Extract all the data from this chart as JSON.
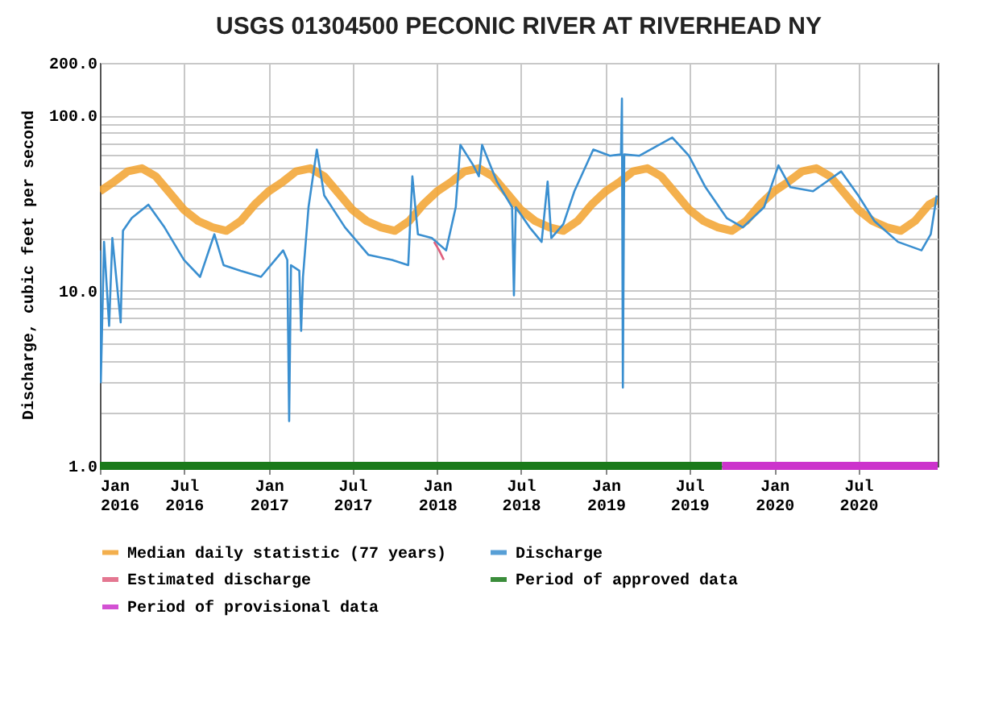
{
  "chart_data": {
    "type": "line",
    "title": "USGS 01304500 PECONIC RIVER AT RIVERHEAD NY",
    "ylabel": "Discharge, cubic feet per second",
    "log": true,
    "grid": true,
    "legend": "bottom",
    "xlim": [
      "2016-01-01",
      "2020-12-20"
    ],
    "xticks": [
      {
        "value": "2016-01-01",
        "label": "Jan 2016"
      },
      {
        "value": "2016-07-01",
        "label": "Jul 2016"
      },
      {
        "value": "2017-01-01",
        "label": "Jan 2017"
      },
      {
        "value": "2017-07-01",
        "label": "Jul 2017"
      },
      {
        "value": "2018-01-01",
        "label": "Jan 2018"
      },
      {
        "value": "2018-07-01",
        "label": "Jul 2018"
      },
      {
        "value": "2019-01-01",
        "label": "Jan 2019"
      },
      {
        "value": "2019-07-01",
        "label": "Jul 2019"
      },
      {
        "value": "2020-01-01",
        "label": "Jan 2020"
      },
      {
        "value": "2020-07-01",
        "label": "Jul 2020"
      }
    ],
    "ylim": [
      1,
      200
    ],
    "yticks": [
      {
        "value": 1,
        "label": "1.0"
      },
      {
        "value": 2,
        "label": null
      },
      {
        "value": 3,
        "label": null
      },
      {
        "value": 4,
        "label": null
      },
      {
        "value": 5,
        "label": null
      },
      {
        "value": 6,
        "label": null
      },
      {
        "value": 7,
        "label": null
      },
      {
        "value": 8,
        "label": null
      },
      {
        "value": 9,
        "label": null
      },
      {
        "value": 10,
        "label": "10.0"
      },
      {
        "value": 20,
        "label": null
      },
      {
        "value": 30,
        "label": null
      },
      {
        "value": 40,
        "label": null
      },
      {
        "value": 50,
        "label": null
      },
      {
        "value": 60,
        "label": null
      },
      {
        "value": 70,
        "label": null
      },
      {
        "value": 80,
        "label": null
      },
      {
        "value": 90,
        "label": null
      },
      {
        "value": 100,
        "label": "100.0"
      },
      {
        "value": 200,
        "label": "200.0"
      }
    ],
    "series": [
      {
        "name": "Median daily statistic (77 years)",
        "color": "#f2a22e",
        "x": [
          "2016-01-01",
          "2016-02-01",
          "2016-03-01",
          "2016-04-01",
          "2016-05-01",
          "2016-06-01",
          "2016-07-01",
          "2016-08-01",
          "2016-09-01",
          "2016-10-01",
          "2016-11-01",
          "2016-12-01",
          "2017-01-01",
          "2017-02-01",
          "2017-03-01",
          "2017-04-01",
          "2017-05-01",
          "2017-06-01",
          "2017-07-01",
          "2017-08-01",
          "2017-09-01",
          "2017-10-01",
          "2017-11-01",
          "2017-12-01",
          "2018-01-01",
          "2018-02-01",
          "2018-03-01",
          "2018-04-01",
          "2018-05-01",
          "2018-06-01",
          "2018-07-01",
          "2018-08-01",
          "2018-09-01",
          "2018-10-01",
          "2018-11-01",
          "2018-12-01",
          "2019-01-01",
          "2019-02-01",
          "2019-03-01",
          "2019-04-01",
          "2019-05-01",
          "2019-06-01",
          "2019-07-01",
          "2019-08-01",
          "2019-09-01",
          "2019-10-01",
          "2019-11-01",
          "2019-12-01",
          "2020-01-01",
          "2020-02-01",
          "2020-03-01",
          "2020-04-01",
          "2020-05-01",
          "2020-06-01",
          "2020-07-01",
          "2020-08-01",
          "2020-09-01",
          "2020-10-01",
          "2020-11-01",
          "2020-12-01",
          "2020-12-20"
        ],
        "values": [
          37,
          42,
          48,
          50,
          45,
          36,
          29,
          25,
          23,
          22,
          25,
          31,
          37,
          42,
          48,
          50,
          45,
          36,
          29,
          25,
          23,
          22,
          25,
          31,
          37,
          42,
          48,
          50,
          45,
          36,
          29,
          25,
          23,
          22,
          25,
          31,
          37,
          42,
          48,
          50,
          45,
          36,
          29,
          25,
          23,
          22,
          25,
          31,
          37,
          42,
          48,
          50,
          45,
          36,
          29,
          25,
          23,
          22,
          25,
          31,
          33
        ]
      },
      {
        "name": "Discharge",
        "color": "#3a8fd0",
        "x": [
          "2016-01-01",
          "2016-01-03",
          "2016-01-10",
          "2016-01-21",
          "2016-01-28",
          "2016-02-15",
          "2016-02-20",
          "2016-03-10",
          "2016-04-15",
          "2016-05-20",
          "2016-07-01",
          "2016-08-05",
          "2016-09-05",
          "2016-09-25",
          "2016-11-01",
          "2016-12-15",
          "2017-02-01",
          "2017-02-10",
          "2017-02-14",
          "2017-02-18",
          "2017-03-08",
          "2017-03-12",
          "2017-03-16",
          "2017-03-28",
          "2017-04-15",
          "2017-05-01",
          "2017-06-15",
          "2017-08-05",
          "2017-09-25",
          "2017-10-30",
          "2017-11-08",
          "2017-11-20",
          "2017-12-20",
          "2018-01-20",
          "2018-02-10",
          "2018-02-20",
          "2018-03-20",
          "2018-04-01",
          "2018-04-08",
          "2018-05-10",
          "2018-06-12",
          "2018-06-16",
          "2018-06-20",
          "2018-07-20",
          "2018-08-15",
          "2018-08-28",
          "2018-09-05",
          "2018-10-01",
          "2018-10-25",
          "2018-12-05",
          "2019-01-10",
          "2019-02-03",
          "2019-02-05",
          "2019-02-07",
          "2019-02-10",
          "2019-03-15",
          "2019-05-25",
          "2019-06-30",
          "2019-08-05",
          "2019-09-20",
          "2019-10-25",
          "2019-12-10",
          "2020-01-10",
          "2020-02-05",
          "2020-03-25",
          "2020-05-25",
          "2020-07-01",
          "2020-08-05",
          "2020-09-25",
          "2020-11-15",
          "2020-12-05",
          "2020-12-18"
        ],
        "values": [
          17,
          3,
          19,
          6.3,
          20,
          6.6,
          22,
          26,
          31,
          23,
          15,
          12,
          21,
          14,
          13,
          12,
          17,
          15,
          1.8,
          14,
          13,
          5.9,
          12,
          30,
          64,
          35,
          23,
          16,
          15,
          14,
          45,
          21,
          20,
          17,
          30,
          68,
          52,
          45,
          68,
          42,
          30,
          9.4,
          30,
          23,
          19,
          42,
          20,
          24,
          37,
          64,
          59,
          60,
          125,
          2.8,
          60,
          59,
          75,
          59,
          39,
          26,
          23,
          30,
          52,
          39,
          37,
          48,
          35,
          25,
          19,
          17,
          21,
          35
        ]
      },
      {
        "name": "Estimated discharge",
        "color": "#e0607e",
        "x": [
          "2017-12-25",
          "2018-01-05",
          "2018-01-15"
        ],
        "values": [
          19,
          17,
          15
        ]
      },
      {
        "name": "Period of approved data",
        "color": "#1a7a1a",
        "x": [
          "2016-01-01",
          "2019-09-10"
        ],
        "values": [
          1,
          1
        ]
      },
      {
        "name": "Period of provisional data",
        "color": "#cc33cc",
        "x": [
          "2019-09-10",
          "2020-12-20"
        ],
        "values": [
          1,
          1
        ]
      }
    ]
  }
}
